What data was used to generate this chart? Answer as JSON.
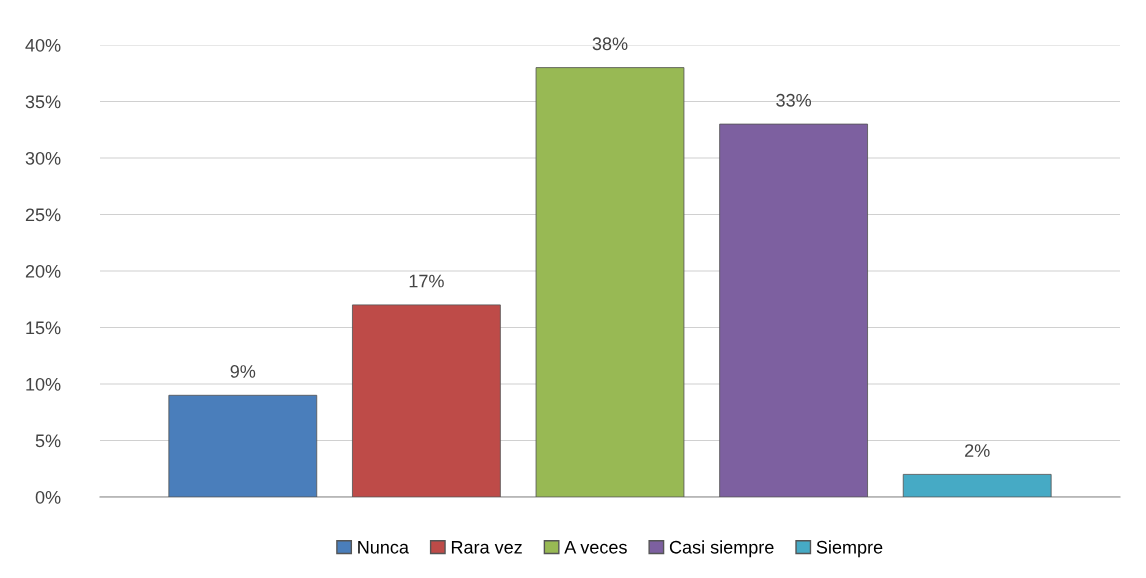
{
  "chart_data": {
    "type": "bar",
    "categories": [
      null
    ],
    "series": [
      {
        "name": "Nunca",
        "color": "#4a7ebb",
        "values": [
          9
        ]
      },
      {
        "name": "Rara vez",
        "color": "#be4b48",
        "values": [
          17
        ]
      },
      {
        "name": "A veces",
        "color": "#98b954",
        "values": [
          38
        ]
      },
      {
        "name": "Casi siempre",
        "color": "#7d60a0",
        "values": [
          33
        ]
      },
      {
        "name": "Siempre",
        "color": "#46aac5",
        "values": [
          2
        ]
      }
    ],
    "ylim": [
      0,
      40
    ],
    "yticks": [
      {
        "value": 0,
        "label": "0%"
      },
      {
        "value": 5,
        "label": "5%"
      },
      {
        "value": 10,
        "label": "10%"
      },
      {
        "value": 15,
        "label": "15%"
      },
      {
        "value": 20,
        "label": "20%"
      },
      {
        "value": 25,
        "label": "25%"
      },
      {
        "value": 30,
        "label": "30%"
      },
      {
        "value": 35,
        "label": "35%"
      },
      {
        "value": 40,
        "label": "40%"
      }
    ],
    "value_labels": [
      "9%",
      "17%",
      "38%",
      "33%",
      "2%"
    ],
    "grid": "y",
    "legend": "bottom",
    "tick_labels": "y"
  }
}
